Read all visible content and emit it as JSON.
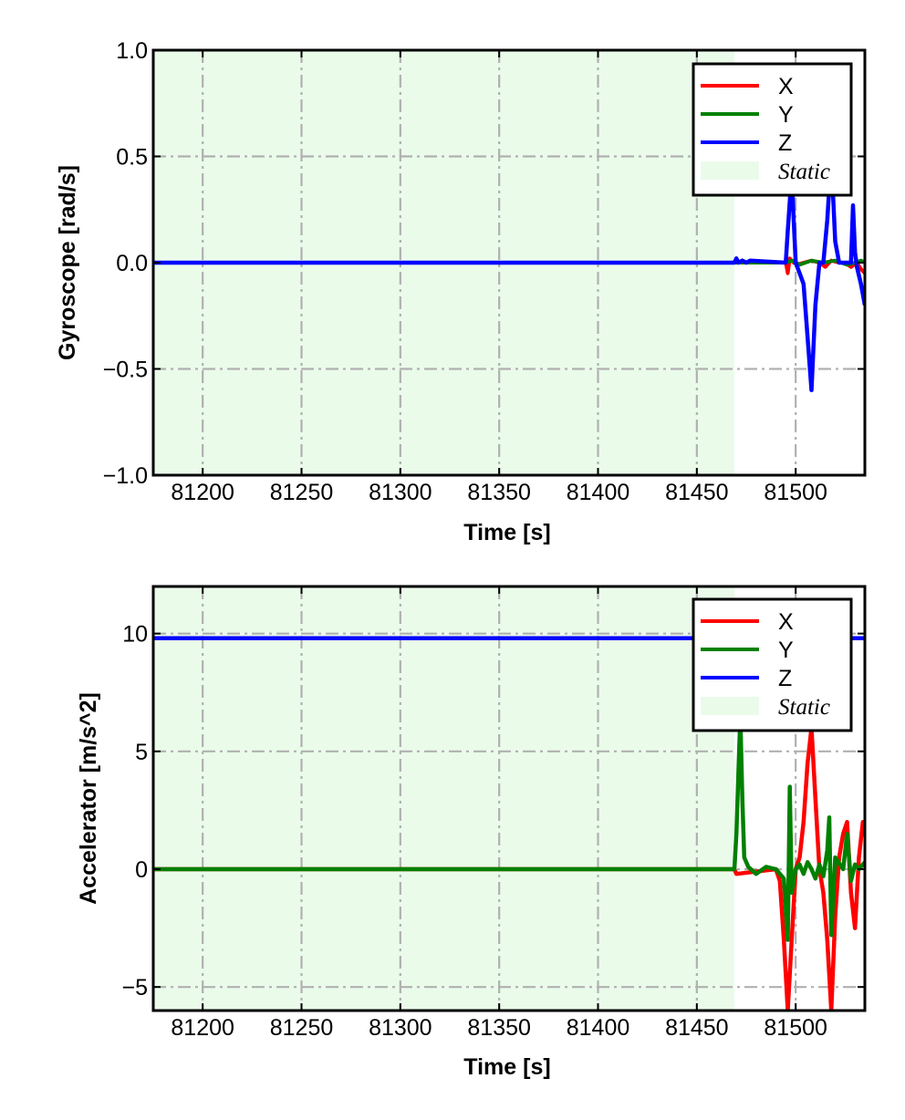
{
  "chart_data": [
    {
      "type": "line",
      "xlabel": "Time [s]",
      "ylabel": "Gyroscope [rad/s]",
      "xlim": [
        81175,
        81535
      ],
      "ylim": [
        -1.0,
        1.0
      ],
      "xticks": [
        81200,
        81250,
        81300,
        81350,
        81400,
        81450,
        81500
      ],
      "xtick_labels": [
        "81200",
        "81250",
        "81300",
        "81350",
        "81400",
        "81450",
        "81500"
      ],
      "yticks": [
        -1.0,
        -0.5,
        0.0,
        0.5,
        1.0
      ],
      "ytick_labels": [
        "−1.0",
        "−0.5",
        "0.0",
        "0.5",
        "1.0"
      ],
      "grid": true,
      "legend_position": "top-right",
      "static_region": {
        "label": "Static",
        "x_start": 81175,
        "x_end": 81469,
        "color": "#eafbea"
      },
      "series": [
        {
          "name": "X",
          "color": "#ff0000",
          "x": [
            81175,
            81469,
            81470,
            81495,
            81496,
            81497,
            81499,
            81501,
            81504,
            81508,
            81512,
            81515,
            81518,
            81522,
            81525,
            81528,
            81531,
            81533,
            81535
          ],
          "y": [
            0.0,
            0.0,
            0.0,
            0.0,
            -0.05,
            0.02,
            0.0,
            -0.01,
            0.0,
            0.01,
            0.0,
            -0.02,
            0.01,
            0.0,
            0.0,
            -0.02,
            0.0,
            -0.03,
            -0.05
          ]
        },
        {
          "name": "Y",
          "color": "#008000",
          "x": [
            81175,
            81469,
            81495,
            81498,
            81502,
            81508,
            81514,
            81520,
            81526,
            81530,
            81533,
            81535
          ],
          "y": [
            0.0,
            0.0,
            0.0,
            0.01,
            -0.01,
            0.01,
            0.0,
            0.01,
            -0.01,
            0.0,
            0.01,
            0.0
          ],
          "note_hidden": ""
        },
        {
          "name": "Z",
          "color": "#0000ff",
          "x": [
            81175,
            81469,
            81470,
            81471,
            81473,
            81475,
            81477,
            81495,
            81496,
            81498,
            81499,
            81500,
            81502,
            81504,
            81506,
            81508,
            81510,
            81512,
            81514,
            81516,
            81518,
            81520,
            81522,
            81524,
            81526,
            81528,
            81529,
            81530,
            81531,
            81533,
            81535
          ],
          "y": [
            0.0,
            0.0,
            0.02,
            0.0,
            0.01,
            0.0,
            0.01,
            0.0,
            0.15,
            0.42,
            0.2,
            0.0,
            -0.05,
            -0.1,
            -0.35,
            -0.6,
            -0.2,
            0.0,
            0.0,
            0.2,
            0.5,
            0.1,
            0.0,
            0.0,
            0.0,
            0.0,
            0.27,
            0.05,
            -0.02,
            -0.1,
            -0.2
          ]
        }
      ]
    },
    {
      "type": "line",
      "xlabel": "Time [s]",
      "ylabel": "Accelerator [m/s^2]",
      "xlim": [
        81175,
        81535
      ],
      "ylim": [
        -6,
        12
      ],
      "xticks": [
        81200,
        81250,
        81300,
        81350,
        81400,
        81450,
        81500
      ],
      "xtick_labels": [
        "81200",
        "81250",
        "81300",
        "81350",
        "81400",
        "81450",
        "81500"
      ],
      "yticks": [
        -5,
        0,
        5,
        10
      ],
      "ytick_labels": [
        "−5",
        "0",
        "5",
        "10"
      ],
      "grid": true,
      "legend_position": "top-right",
      "static_region": {
        "label": "Static",
        "x_start": 81175,
        "x_end": 81469,
        "color": "#eafbea"
      },
      "series": [
        {
          "name": "X",
          "color": "#ff0000",
          "x": [
            81175,
            81469,
            81470,
            81490,
            81492,
            81494,
            81496,
            81498,
            81500,
            81502,
            81504,
            81506,
            81508,
            81510,
            81512,
            81514,
            81516,
            81518,
            81520,
            81522,
            81524,
            81526,
            81528,
            81530,
            81532,
            81534,
            81535
          ],
          "y": [
            0.0,
            0.0,
            -0.2,
            0.0,
            -0.5,
            -3.0,
            -6.0,
            -3.0,
            0.0,
            0.5,
            2.0,
            4.5,
            6.0,
            3.0,
            0.0,
            -1.0,
            -3.0,
            -6.0,
            -2.0,
            0.5,
            1.5,
            2.0,
            -1.0,
            -2.5,
            0.5,
            2.0,
            1.5
          ]
        },
        {
          "name": "Y",
          "color": "#008000",
          "x": [
            81175,
            81469,
            81470,
            81471,
            81472,
            81473,
            81474,
            81476,
            81480,
            81485,
            81490,
            81494,
            81496,
            81497,
            81498,
            81500,
            81502,
            81504,
            81506,
            81508,
            81510,
            81512,
            81514,
            81516,
            81517,
            81518,
            81520,
            81524,
            81526,
            81528,
            81530,
            81532,
            81535
          ],
          "y": [
            0.0,
            0.0,
            1.5,
            4.0,
            6.5,
            3.0,
            0.5,
            0.1,
            -0.2,
            0.1,
            0.0,
            -0.4,
            -3.0,
            3.5,
            -1.0,
            0.0,
            0.2,
            -0.2,
            0.3,
            0.0,
            -0.4,
            0.2,
            -0.3,
            0.8,
            2.2,
            -2.8,
            0.5,
            0.0,
            1.5,
            -0.5,
            0.2,
            0.0,
            0.3
          ]
        },
        {
          "name": "Z",
          "color": "#0000ff",
          "x": [
            81175,
            81300,
            81469,
            81470,
            81530,
            81531,
            81535
          ],
          "y": [
            9.8,
            9.8,
            9.8,
            9.8,
            9.8,
            9.8,
            9.8
          ]
        }
      ]
    }
  ]
}
